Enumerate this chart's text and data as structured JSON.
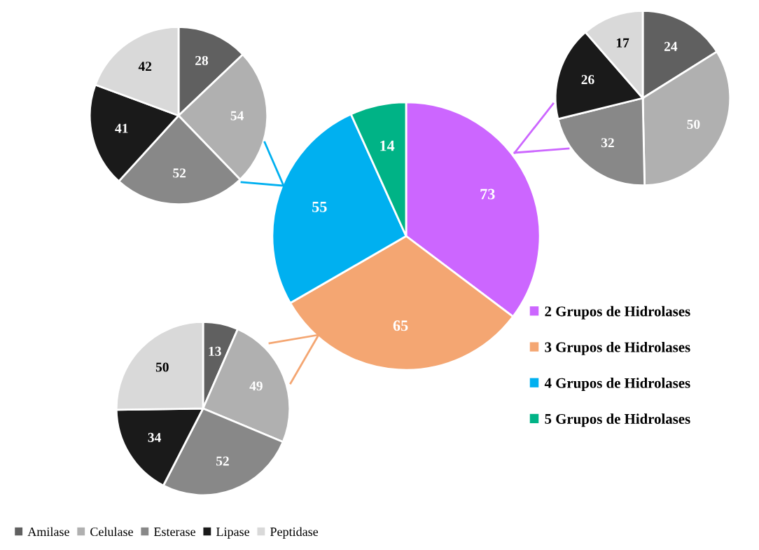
{
  "chart_data": [
    {
      "type": "pie",
      "categories": [
        "Amilase",
        "Celulase",
        "Esterase",
        "Lipase",
        "Peptidase"
      ],
      "values": [
        28,
        54,
        52,
        41,
        42
      ],
      "colors": [
        "#606060",
        "#b0b0b0",
        "#888888",
        "#1a1a1a",
        "#d9d9d9"
      ],
      "data_labels": true,
      "legend": "bottom"
    },
    {
      "type": "pie",
      "categories": [
        null,
        null,
        null,
        null,
        null
      ],
      "values": [
        24,
        50,
        32,
        26,
        17
      ],
      "colors": [
        "#606060",
        "#b0b0b0",
        "#888888",
        "#1a1a1a",
        "#d9d9d9"
      ],
      "data_labels": true
    },
    {
      "type": "pie",
      "categories": [
        "2 Grupos de Hidrolases",
        "3 Grupos de Hidrolases",
        "4 Grupos de Hidrolases",
        "5 Grupos de Hidrolases"
      ],
      "values": [
        73,
        65,
        55,
        14
      ],
      "colors": [
        "#cc66ff",
        "#f4a672",
        "#00b0f0",
        "#00b386"
      ],
      "data_labels": true,
      "legend": "right"
    },
    {
      "type": "pie",
      "categories": [
        null,
        null,
        null,
        null,
        null
      ],
      "values": [
        13,
        49,
        52,
        34,
        50
      ],
      "colors": [
        "#606060",
        "#b0b0b0",
        "#888888",
        "#1a1a1a",
        "#d9d9d9"
      ],
      "data_labels": true
    }
  ]
}
